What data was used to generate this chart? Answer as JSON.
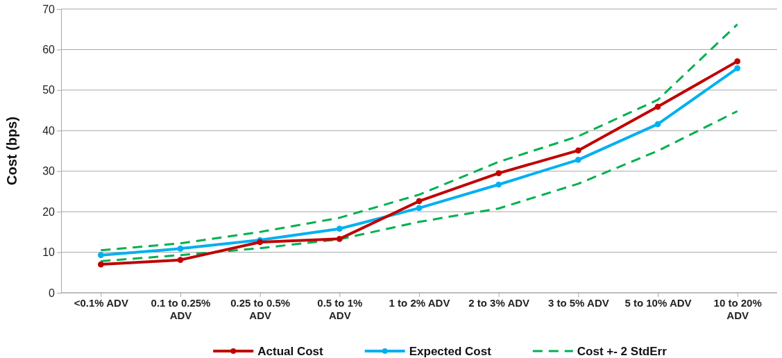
{
  "chart_data": {
    "type": "line",
    "ylabel": "Cost  (bps)",
    "categories": [
      "<0.1% ADV",
      "0.1 to 0.25% ADV",
      "0.25 to 0.5% ADV",
      "0.5 to 1% ADV",
      "1 to 2% ADV",
      "2 to 3% ADV",
      "3 to 5% ADV",
      "5 to 10% ADV",
      "10 to 20% ADV"
    ],
    "series": [
      {
        "name": "Actual Cost",
        "color": "#c00000",
        "marker": "circle",
        "line_style": "solid",
        "values": [
          7.0,
          8.1,
          12.5,
          13.3,
          22.6,
          29.5,
          35.1,
          45.9,
          57.1
        ]
      },
      {
        "name": "Expected Cost",
        "color": "#00b0f0",
        "marker": "circle",
        "line_style": "solid",
        "values": [
          9.3,
          10.9,
          13.0,
          15.8,
          20.9,
          26.7,
          32.8,
          41.6,
          55.4
        ]
      },
      {
        "name": "Cost +- 2 StdErr",
        "color": "#00b050",
        "marker": "none",
        "line_style": "dashed",
        "values": [
          10.5,
          12.2,
          15.0,
          18.5,
          24.2,
          32.3,
          38.6,
          47.6,
          66.2
        ]
      },
      {
        "color": "#00b050",
        "marker": "none",
        "line_style": "dashed",
        "values": [
          7.8,
          9.3,
          11.0,
          13.2,
          17.5,
          20.8,
          26.9,
          35.0,
          44.8
        ]
      }
    ],
    "ylim": [
      0,
      70
    ],
    "yticks": [
      0,
      10,
      20,
      30,
      40,
      50,
      60,
      70
    ],
    "grid": "y",
    "legend": "bottom"
  }
}
